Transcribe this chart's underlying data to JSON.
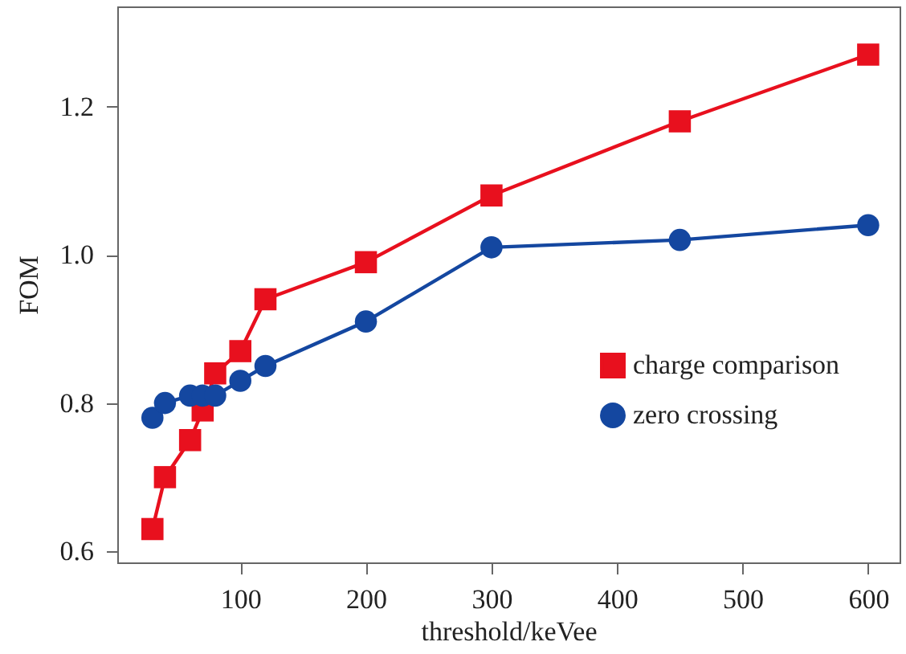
{
  "chart_data": {
    "type": "line",
    "xlabel": "threshold/keVee",
    "ylabel": "FOM",
    "x": [
      30,
      40,
      60,
      70,
      80,
      100,
      120,
      200,
      300,
      450,
      600
    ],
    "series": [
      {
        "name": "charge comparison",
        "color": "#e8101e",
        "marker": "square",
        "values": [
          0.63,
          0.7,
          0.75,
          0.79,
          0.84,
          0.87,
          0.94,
          0.99,
          1.08,
          1.18,
          1.27
        ]
      },
      {
        "name": "zero crossing",
        "color": "#1447a0",
        "marker": "circle",
        "values": [
          0.78,
          0.8,
          0.81,
          0.81,
          0.81,
          0.83,
          0.85,
          0.91,
          1.01,
          1.02,
          1.04
        ]
      }
    ],
    "xlim": [
      2,
      625
    ],
    "ylim": [
      0.585,
      1.335
    ],
    "xticks": [
      100,
      200,
      300,
      400,
      500,
      600
    ],
    "yticks": [
      {
        "value": 0.6,
        "label": "0.6"
      },
      {
        "value": 0.8,
        "label": "0.8"
      },
      {
        "value": 1.0,
        "label": "1.0"
      },
      {
        "value": 1.2,
        "label": "1.2"
      }
    ],
    "grid": false,
    "legend": "right",
    "line_style": "solid"
  }
}
